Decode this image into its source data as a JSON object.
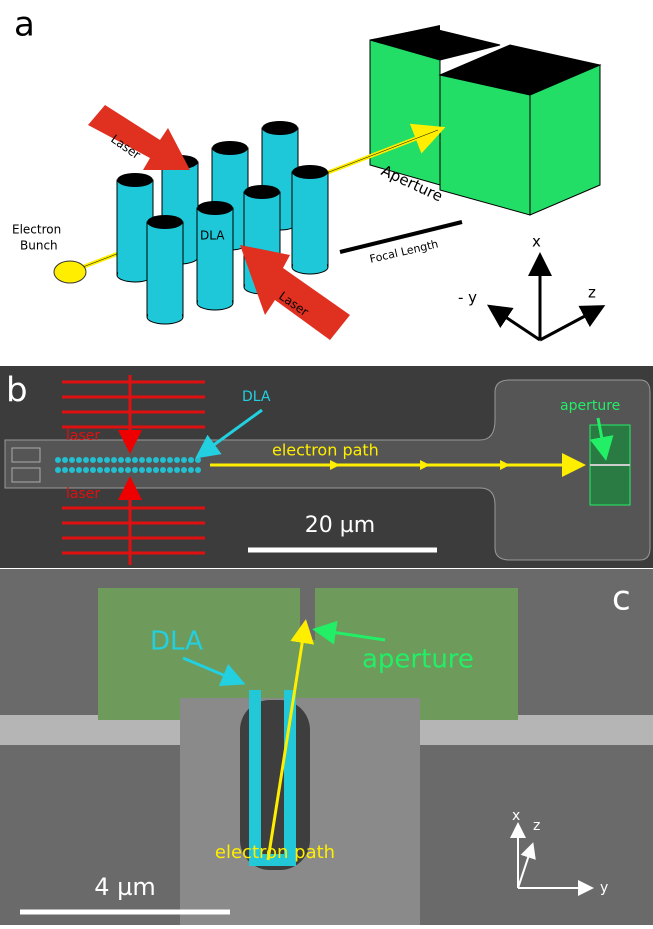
{
  "panel_a": {
    "label": "a",
    "laser_top": "Laser",
    "laser_bottom": "Laser",
    "electron_bunch": [
      "Electron",
      "Bunch"
    ],
    "dla": "DLA",
    "aperture": "Aperture",
    "focal_length": "Focal Length",
    "axes": {
      "x": "x",
      "y": "- y",
      "z": "z"
    }
  },
  "panel_b": {
    "label": "b",
    "laser_top": "laser",
    "laser_bottom": "laser",
    "dla": "DLA",
    "electron_path": "electron path",
    "aperture": "aperture",
    "scale_bar": "20 µm"
  },
  "panel_c": {
    "label": "c",
    "dla": "DLA",
    "aperture": "aperture",
    "electron_path": "electron path",
    "scale_bar": "4 µm",
    "axes": {
      "x": "x",
      "z": "z",
      "y": "y"
    }
  }
}
